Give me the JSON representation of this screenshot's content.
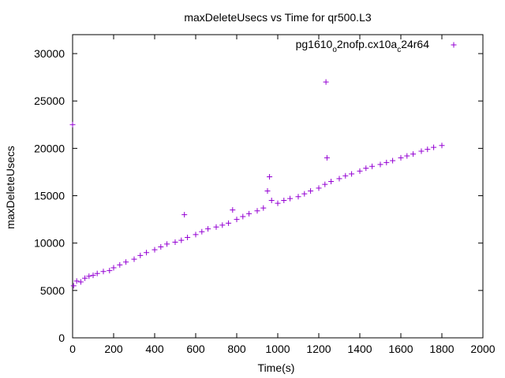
{
  "chart_data": {
    "type": "scatter",
    "title": "maxDeleteUsecs vs Time for qr500.L3",
    "xlabel": "Time(s)",
    "ylabel": "maxDeleteUsecs",
    "xlim": [
      0,
      2000
    ],
    "ylim": [
      0,
      32000
    ],
    "x_ticks": [
      0,
      200,
      400,
      600,
      800,
      1000,
      1200,
      1400,
      1600,
      1800,
      2000
    ],
    "y_ticks": [
      0,
      5000,
      10000,
      15000,
      20000,
      25000,
      30000
    ],
    "x_tick_labels": [
      "0",
      "200",
      "400",
      "600",
      "800",
      "1000",
      "1200",
      "1400",
      "1600",
      "1800",
      "2000"
    ],
    "y_tick_labels": [
      "0",
      "5000",
      "10000",
      "15000",
      "20000",
      "25000",
      "30000"
    ],
    "grid": false,
    "legend_position": "top-right",
    "marker": "plus",
    "series": [
      {
        "name_parts": [
          "pg1610",
          "o",
          "2nofp.cx10a",
          "c",
          "24r64"
        ],
        "color": "#9400d3",
        "points": [
          [
            0,
            22500
          ],
          [
            5,
            5500
          ],
          [
            20,
            6000
          ],
          [
            40,
            5900
          ],
          [
            60,
            6300
          ],
          [
            80,
            6500
          ],
          [
            100,
            6600
          ],
          [
            120,
            6800
          ],
          [
            150,
            7000
          ],
          [
            180,
            7100
          ],
          [
            200,
            7400
          ],
          [
            230,
            7700
          ],
          [
            260,
            8000
          ],
          [
            300,
            8300
          ],
          [
            330,
            8700
          ],
          [
            360,
            9000
          ],
          [
            400,
            9300
          ],
          [
            430,
            9600
          ],
          [
            460,
            9900
          ],
          [
            500,
            10100
          ],
          [
            530,
            10300
          ],
          [
            545,
            13000
          ],
          [
            560,
            10600
          ],
          [
            600,
            10900
          ],
          [
            630,
            11200
          ],
          [
            660,
            11500
          ],
          [
            700,
            11700
          ],
          [
            730,
            11900
          ],
          [
            760,
            12100
          ],
          [
            780,
            13500
          ],
          [
            800,
            12500
          ],
          [
            830,
            12800
          ],
          [
            860,
            13100
          ],
          [
            900,
            13400
          ],
          [
            930,
            13700
          ],
          [
            950,
            15500
          ],
          [
            960,
            17000
          ],
          [
            970,
            14500
          ],
          [
            1000,
            14200
          ],
          [
            1030,
            14500
          ],
          [
            1060,
            14700
          ],
          [
            1100,
            14900
          ],
          [
            1130,
            15200
          ],
          [
            1160,
            15500
          ],
          [
            1200,
            15800
          ],
          [
            1230,
            16200
          ],
          [
            1235,
            27000
          ],
          [
            1240,
            19000
          ],
          [
            1260,
            16500
          ],
          [
            1300,
            16800
          ],
          [
            1330,
            17100
          ],
          [
            1360,
            17300
          ],
          [
            1400,
            17600
          ],
          [
            1430,
            17900
          ],
          [
            1460,
            18100
          ],
          [
            1500,
            18300
          ],
          [
            1530,
            18500
          ],
          [
            1560,
            18700
          ],
          [
            1600,
            19000
          ],
          [
            1630,
            19200
          ],
          [
            1660,
            19400
          ],
          [
            1700,
            19700
          ],
          [
            1730,
            19900
          ],
          [
            1760,
            20100
          ],
          [
            1800,
            20300
          ]
        ]
      }
    ]
  }
}
